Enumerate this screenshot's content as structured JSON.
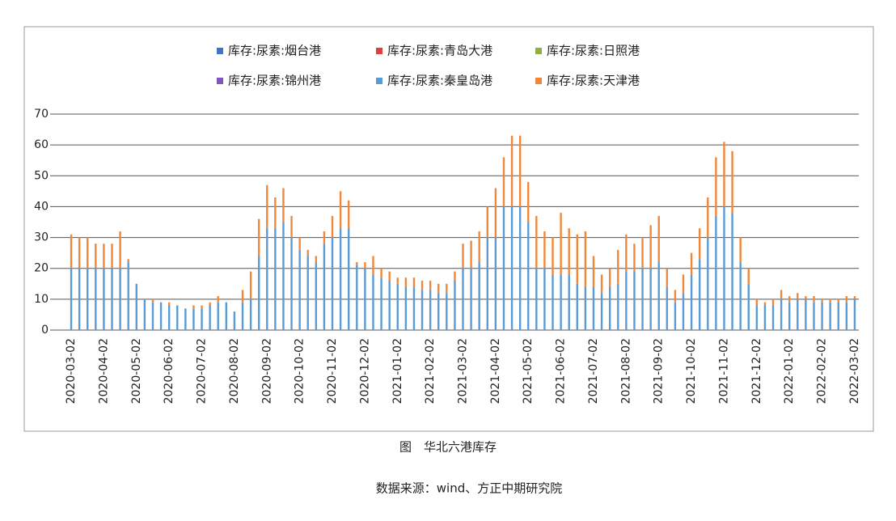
{
  "chart_data": {
    "type": "stacked_bar",
    "title": "图　华北六港库存",
    "source": "数据来源：wind、方正中期研究院",
    "categories": [
      "2020-03-02",
      null,
      null,
      null,
      "2020-04-02",
      null,
      null,
      null,
      "2020-05-02",
      null,
      null,
      null,
      "2020-06-02",
      null,
      null,
      null,
      "2020-07-02",
      null,
      null,
      null,
      "2020-08-02",
      null,
      null,
      null,
      "2020-09-02",
      null,
      null,
      null,
      "2020-10-02",
      null,
      null,
      null,
      "2020-11-02",
      null,
      null,
      null,
      "2020-12-02",
      null,
      null,
      null,
      "2021-01-02",
      null,
      null,
      null,
      "2021-02-02",
      null,
      null,
      null,
      "2021-03-02",
      null,
      null,
      null,
      "2021-04-02",
      null,
      null,
      null,
      "2021-05-02",
      null,
      null,
      null,
      "2021-06-02",
      null,
      null,
      null,
      "2021-07-02",
      null,
      null,
      null,
      "2021-08-02",
      null,
      null,
      null,
      "2021-09-02",
      null,
      null,
      null,
      "2021-10-02",
      null,
      null,
      null,
      "2021-11-02",
      null,
      null,
      null,
      "2021-12-02",
      null,
      null,
      null,
      "2022-01-02",
      null,
      null,
      null,
      "2022-02-02",
      null,
      null,
      null,
      "2022-03-02"
    ],
    "series": [
      {
        "name": "库存:尿素:烟台港",
        "color": "#4472c4",
        "values": [
          0,
          0,
          0,
          0,
          0,
          0,
          0,
          0,
          0,
          0,
          0,
          0,
          0,
          0,
          0,
          0,
          0,
          0,
          0,
          0,
          0,
          0,
          0,
          0,
          0,
          0,
          0,
          0,
          0,
          0,
          0,
          0,
          0,
          0,
          0,
          0,
          0,
          0,
          0,
          0,
          0,
          0,
          0,
          0,
          0,
          0,
          0,
          0,
          0,
          0,
          0,
          0,
          0,
          0,
          0,
          0,
          0,
          0,
          0,
          0,
          0,
          0,
          0,
          0,
          0,
          0,
          0,
          0,
          0,
          0,
          0,
          0,
          0,
          0,
          0,
          0,
          0,
          0,
          0,
          0,
          0,
          0,
          0,
          0,
          0,
          0,
          0,
          0,
          0,
          0,
          0,
          0,
          0,
          0,
          0,
          0,
          0
        ]
      },
      {
        "name": "库存:尿素:青岛大港",
        "color": "#e0403a",
        "values": [
          0,
          0,
          0,
          0,
          0,
          0,
          0,
          0,
          0,
          0,
          0,
          0,
          0,
          0,
          0,
          0,
          0,
          0,
          0,
          0,
          0,
          0,
          0,
          0,
          0,
          0,
          0,
          0,
          0,
          0,
          0,
          0,
          0,
          0,
          0,
          0,
          0,
          0,
          0,
          0,
          0,
          0,
          0,
          0,
          0,
          0,
          0,
          0,
          0,
          0,
          0,
          0,
          0,
          0,
          0,
          0,
          0,
          0,
          0,
          0,
          0,
          0,
          0,
          0,
          0,
          0,
          0,
          0,
          0,
          0,
          0,
          0,
          0,
          0,
          0,
          0,
          0,
          0,
          0,
          0,
          0,
          0,
          0,
          0,
          0,
          0,
          0,
          0,
          0,
          0,
          0,
          0,
          0,
          0,
          0,
          0,
          0
        ]
      },
      {
        "name": "库存:尿素:日照港",
        "color": "#8fb040",
        "values": [
          0,
          0,
          0,
          0,
          0,
          0,
          0,
          0,
          0,
          0,
          0,
          0,
          0,
          0,
          0,
          0,
          0,
          0,
          0,
          0,
          0,
          0,
          0,
          0,
          0,
          0,
          0,
          0,
          0,
          0,
          0,
          0,
          0,
          0,
          0,
          0,
          0,
          0,
          0,
          0,
          0,
          0,
          0,
          0,
          0,
          0,
          0,
          0,
          0,
          0,
          0,
          0,
          0,
          0,
          0,
          0,
          0,
          0,
          0,
          0,
          0,
          0,
          0,
          0,
          0,
          0,
          0,
          0,
          0,
          0,
          0,
          0,
          0,
          0,
          0,
          0,
          0,
          0,
          0,
          0,
          0,
          0,
          0,
          0,
          0,
          0,
          0,
          0,
          0,
          0,
          0,
          0,
          0,
          0,
          0,
          0,
          0
        ]
      },
      {
        "name": "库存:尿素:锦州港",
        "color": "#7e57c2",
        "values": [
          0,
          0,
          0,
          0,
          0,
          0,
          0,
          0,
          0,
          0,
          0,
          0,
          0,
          0,
          0,
          0,
          0,
          0,
          0,
          0,
          0,
          0,
          0,
          0,
          0,
          0,
          0,
          0,
          0,
          0,
          0,
          0,
          0,
          0,
          0,
          0,
          0,
          0,
          0,
          0,
          0,
          0,
          0,
          0,
          0,
          0,
          0,
          0,
          0,
          0,
          0,
          0,
          0,
          0,
          0,
          0,
          0,
          0,
          0,
          0,
          0,
          0,
          0,
          0,
          0,
          0,
          0,
          0,
          0,
          0,
          0,
          0,
          0,
          0,
          0,
          0,
          0,
          0,
          0,
          0,
          0,
          0,
          0,
          0,
          0,
          0,
          0,
          0,
          0,
          0,
          0,
          0,
          0,
          0,
          0,
          0,
          0
        ]
      },
      {
        "name": "库存:尿素:秦皇岛港",
        "color": "#5b9bd5",
        "values": [
          20,
          20,
          20,
          20,
          20,
          20,
          20,
          22,
          15,
          10,
          9,
          9,
          8,
          8,
          7,
          7,
          7,
          8,
          9,
          9,
          6,
          9,
          10,
          24,
          33,
          33,
          35,
          30,
          26,
          24,
          22,
          28,
          30,
          33,
          33,
          21,
          20,
          18,
          17,
          16,
          15,
          14,
          14,
          13,
          13,
          12,
          12,
          16,
          20,
          20,
          22,
          30,
          30,
          40,
          40,
          40,
          35,
          20,
          20,
          18,
          18,
          18,
          15,
          14,
          14,
          12,
          14,
          15,
          19,
          19,
          20,
          20,
          22,
          14,
          9,
          12,
          18,
          23,
          30,
          37,
          40,
          38,
          22,
          15,
          8,
          8,
          8,
          10,
          9,
          10,
          10,
          9,
          9,
          9,
          9,
          9,
          10
        ]
      },
      {
        "name": "库存:尿素:天津港",
        "color": "#f0883c",
        "values": [
          11,
          10,
          10,
          8,
          8,
          8,
          12,
          1,
          0,
          0,
          1,
          0,
          1,
          0,
          0,
          1,
          1,
          1,
          2,
          0,
          0,
          4,
          9,
          12,
          14,
          10,
          11,
          7,
          4,
          2,
          2,
          4,
          7,
          12,
          9,
          1,
          2,
          6,
          3,
          3,
          2,
          3,
          3,
          3,
          3,
          3,
          3,
          3,
          8,
          9,
          10,
          10,
          16,
          16,
          23,
          23,
          13,
          17,
          12,
          12,
          20,
          15,
          16,
          18,
          10,
          6,
          6,
          11,
          12,
          9,
          10,
          14,
          15,
          6,
          4,
          6,
          7,
          10,
          13,
          19,
          21,
          20,
          8,
          5,
          2,
          1,
          2,
          3,
          2,
          2,
          1,
          2,
          1,
          1,
          1,
          2,
          1
        ]
      }
    ],
    "ylim": [
      0,
      70
    ],
    "yticks": [
      0,
      10,
      20,
      30,
      40,
      50,
      60,
      70
    ],
    "grid": true
  }
}
